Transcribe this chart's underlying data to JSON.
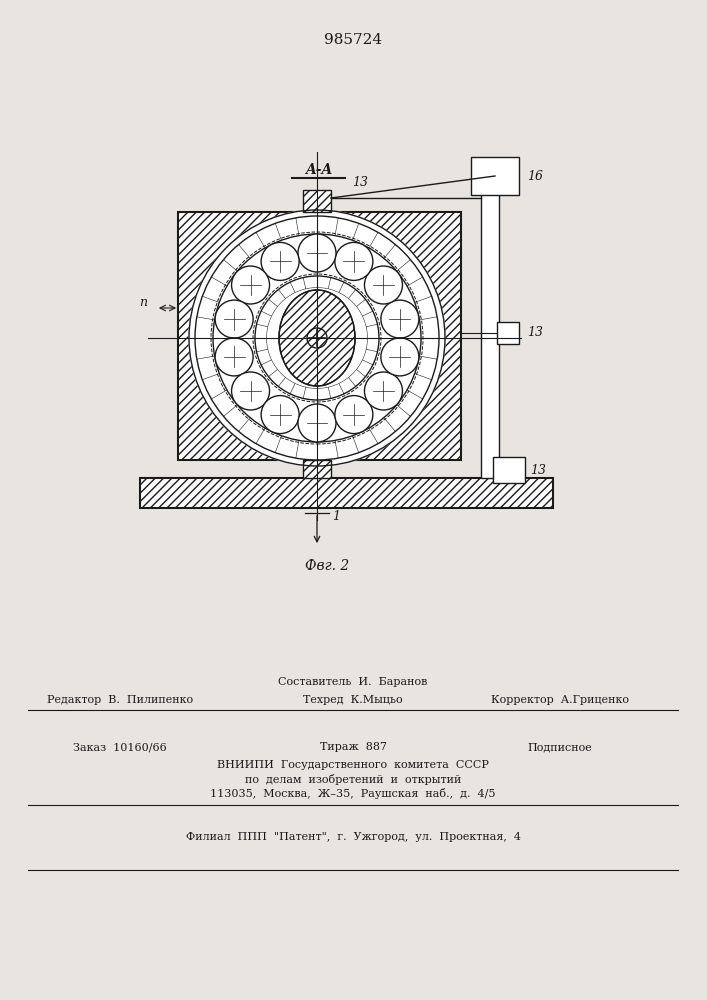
{
  "title": "985724",
  "fig_label": "Фвг. 2",
  "section_label": "A-A",
  "background_color": "#e8e5e0",
  "line_color": "#1a1a1a",
  "footer_line1_left": "Редактор  В.  Пилипенко",
  "footer_line1_mid": "Техред  К.Мыцьо",
  "footer_line1_right": "Корректор  А.Гриценко",
  "footer_line0": "Составитель  И.  Баранов",
  "footer_line2_left": "Заказ  10160/66",
  "footer_line2_mid": "Тираж  887",
  "footer_line2_right": "Подписное",
  "footer_line3": "ВНИИПИ  Государственного  комитета  СССР",
  "footer_line4": "по  делам  изобретений  и  открытий",
  "footer_line5": "113035,  Москва,  Ж–35,  Раушская  наб.,  д.  4/5",
  "footer_line6": "Филиал  ППП  \"Патент\",  г.  Ужгород,  ул.  Проектная,  4"
}
